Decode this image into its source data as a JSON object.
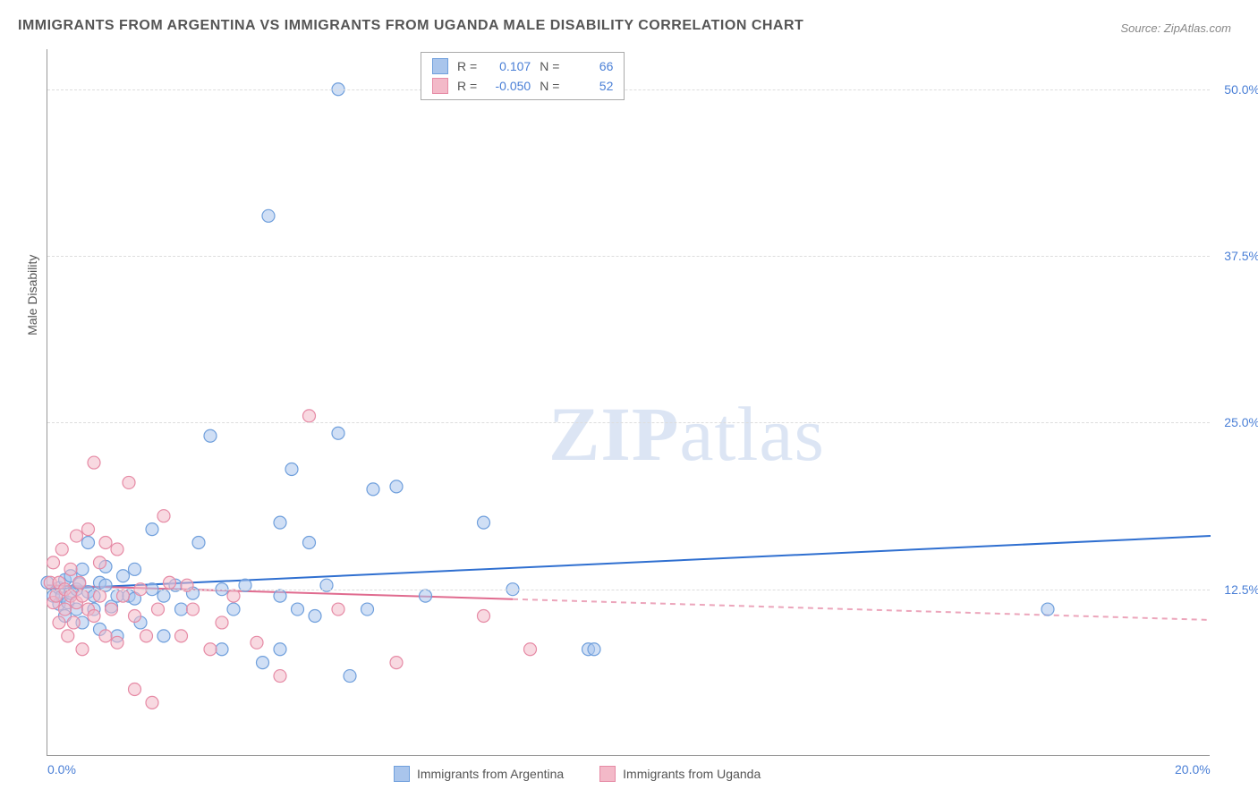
{
  "title": "IMMIGRANTS FROM ARGENTINA VS IMMIGRANTS FROM UGANDA MALE DISABILITY CORRELATION CHART",
  "source": "Source: ZipAtlas.com",
  "y_axis_label": "Male Disability",
  "watermark": {
    "bold": "ZIP",
    "rest": "atlas"
  },
  "chart": {
    "type": "scatter",
    "xlim": [
      0,
      20
    ],
    "ylim": [
      0,
      53
    ],
    "x_ticks": [
      {
        "v": 0,
        "label": "0.0%"
      },
      {
        "v": 20,
        "label": "20.0%"
      }
    ],
    "y_gridlines": [
      12.5,
      25.0,
      37.5,
      50.0
    ],
    "y_tick_labels": [
      "12.5%",
      "25.0%",
      "37.5%",
      "50.0%"
    ],
    "background_color": "#ffffff",
    "grid_color": "#dddddd",
    "axis_tick_color": "#4a7fd6",
    "marker_radius": 7,
    "marker_stroke_width": 1.2,
    "series": [
      {
        "name": "Immigrants from Argentina",
        "fill": "#a9c5ec",
        "stroke": "#6f9fdc",
        "fill_opacity": 0.55,
        "R": "0.107",
        "N": "66",
        "trend": {
          "y_at_x0": 12.5,
          "y_at_x20": 16.5,
          "color": "#2f6fd0",
          "width": 2,
          "solid_to_x": 20
        },
        "points": [
          [
            0.0,
            13.0
          ],
          [
            0.1,
            12.0
          ],
          [
            0.2,
            12.6
          ],
          [
            0.2,
            11.4
          ],
          [
            0.25,
            12.0
          ],
          [
            0.3,
            13.2
          ],
          [
            0.3,
            10.5
          ],
          [
            0.35,
            11.5
          ],
          [
            0.4,
            12.2
          ],
          [
            0.4,
            13.5
          ],
          [
            0.5,
            11.0
          ],
          [
            0.5,
            12.5
          ],
          [
            0.55,
            12.9
          ],
          [
            0.6,
            14.0
          ],
          [
            0.6,
            10.0
          ],
          [
            0.7,
            16.0
          ],
          [
            0.7,
            12.3
          ],
          [
            0.8,
            11.0
          ],
          [
            0.8,
            12.0
          ],
          [
            0.9,
            13.0
          ],
          [
            0.9,
            9.5
          ],
          [
            1.0,
            12.8
          ],
          [
            1.0,
            14.2
          ],
          [
            1.1,
            11.2
          ],
          [
            1.2,
            12.0
          ],
          [
            1.2,
            9.0
          ],
          [
            1.3,
            13.5
          ],
          [
            1.4,
            12.0
          ],
          [
            1.5,
            11.8
          ],
          [
            1.5,
            14.0
          ],
          [
            1.6,
            10.0
          ],
          [
            1.8,
            12.5
          ],
          [
            1.8,
            17.0
          ],
          [
            2.0,
            12.0
          ],
          [
            2.0,
            9.0
          ],
          [
            2.2,
            12.8
          ],
          [
            2.3,
            11.0
          ],
          [
            2.5,
            12.2
          ],
          [
            2.6,
            16.0
          ],
          [
            2.8,
            24.0
          ],
          [
            3.0,
            12.5
          ],
          [
            3.0,
            8.0
          ],
          [
            3.2,
            11.0
          ],
          [
            3.4,
            12.8
          ],
          [
            3.7,
            7.0
          ],
          [
            3.8,
            40.5
          ],
          [
            4.0,
            12.0
          ],
          [
            4.0,
            8.0
          ],
          [
            4.0,
            17.5
          ],
          [
            4.2,
            21.5
          ],
          [
            4.3,
            11.0
          ],
          [
            4.5,
            16.0
          ],
          [
            4.6,
            10.5
          ],
          [
            4.8,
            12.8
          ],
          [
            5.0,
            50.0
          ],
          [
            5.0,
            24.2
          ],
          [
            5.2,
            6.0
          ],
          [
            5.5,
            11.0
          ],
          [
            5.6,
            20.0
          ],
          [
            6.0,
            20.2
          ],
          [
            6.5,
            12.0
          ],
          [
            7.5,
            17.5
          ],
          [
            8.0,
            12.5
          ],
          [
            9.3,
            8.0
          ],
          [
            9.4,
            8.0
          ],
          [
            17.2,
            11.0
          ]
        ]
      },
      {
        "name": "Immigrants from Uganda",
        "fill": "#f3b9c8",
        "stroke": "#e68aa5",
        "fill_opacity": 0.55,
        "R": "-0.050",
        "N": "52",
        "trend": {
          "y_at_x0": 12.8,
          "y_at_x20": 10.2,
          "color": "#e06b8f",
          "width": 2,
          "solid_to_x": 8
        },
        "points": [
          [
            0.05,
            13.0
          ],
          [
            0.1,
            11.5
          ],
          [
            0.1,
            14.5
          ],
          [
            0.15,
            12.0
          ],
          [
            0.2,
            10.0
          ],
          [
            0.2,
            13.0
          ],
          [
            0.25,
            15.5
          ],
          [
            0.3,
            11.0
          ],
          [
            0.3,
            12.5
          ],
          [
            0.35,
            9.0
          ],
          [
            0.4,
            14.0
          ],
          [
            0.4,
            12.0
          ],
          [
            0.45,
            10.0
          ],
          [
            0.5,
            16.5
          ],
          [
            0.5,
            11.5
          ],
          [
            0.55,
            13.0
          ],
          [
            0.6,
            8.0
          ],
          [
            0.6,
            12.0
          ],
          [
            0.7,
            11.0
          ],
          [
            0.7,
            17.0
          ],
          [
            0.8,
            22.0
          ],
          [
            0.8,
            10.5
          ],
          [
            0.9,
            12.0
          ],
          [
            0.9,
            14.5
          ],
          [
            1.0,
            9.0
          ],
          [
            1.0,
            16.0
          ],
          [
            1.1,
            11.0
          ],
          [
            1.2,
            15.5
          ],
          [
            1.2,
            8.5
          ],
          [
            1.3,
            12.0
          ],
          [
            1.4,
            20.5
          ],
          [
            1.5,
            10.5
          ],
          [
            1.5,
            5.0
          ],
          [
            1.6,
            12.5
          ],
          [
            1.7,
            9.0
          ],
          [
            1.8,
            4.0
          ],
          [
            1.9,
            11.0
          ],
          [
            2.0,
            18.0
          ],
          [
            2.1,
            13.0
          ],
          [
            2.3,
            9.0
          ],
          [
            2.4,
            12.8
          ],
          [
            2.5,
            11.0
          ],
          [
            2.8,
            8.0
          ],
          [
            3.0,
            10.0
          ],
          [
            3.2,
            12.0
          ],
          [
            3.6,
            8.5
          ],
          [
            4.0,
            6.0
          ],
          [
            4.5,
            25.5
          ],
          [
            5.0,
            11.0
          ],
          [
            6.0,
            7.0
          ],
          [
            7.5,
            10.5
          ],
          [
            8.3,
            8.0
          ]
        ]
      }
    ]
  },
  "legend_top": {
    "r_label": "R =",
    "n_label": "N ="
  },
  "legend_bottom_labels": [
    "Immigrants from Argentina",
    "Immigrants from Uganda"
  ]
}
